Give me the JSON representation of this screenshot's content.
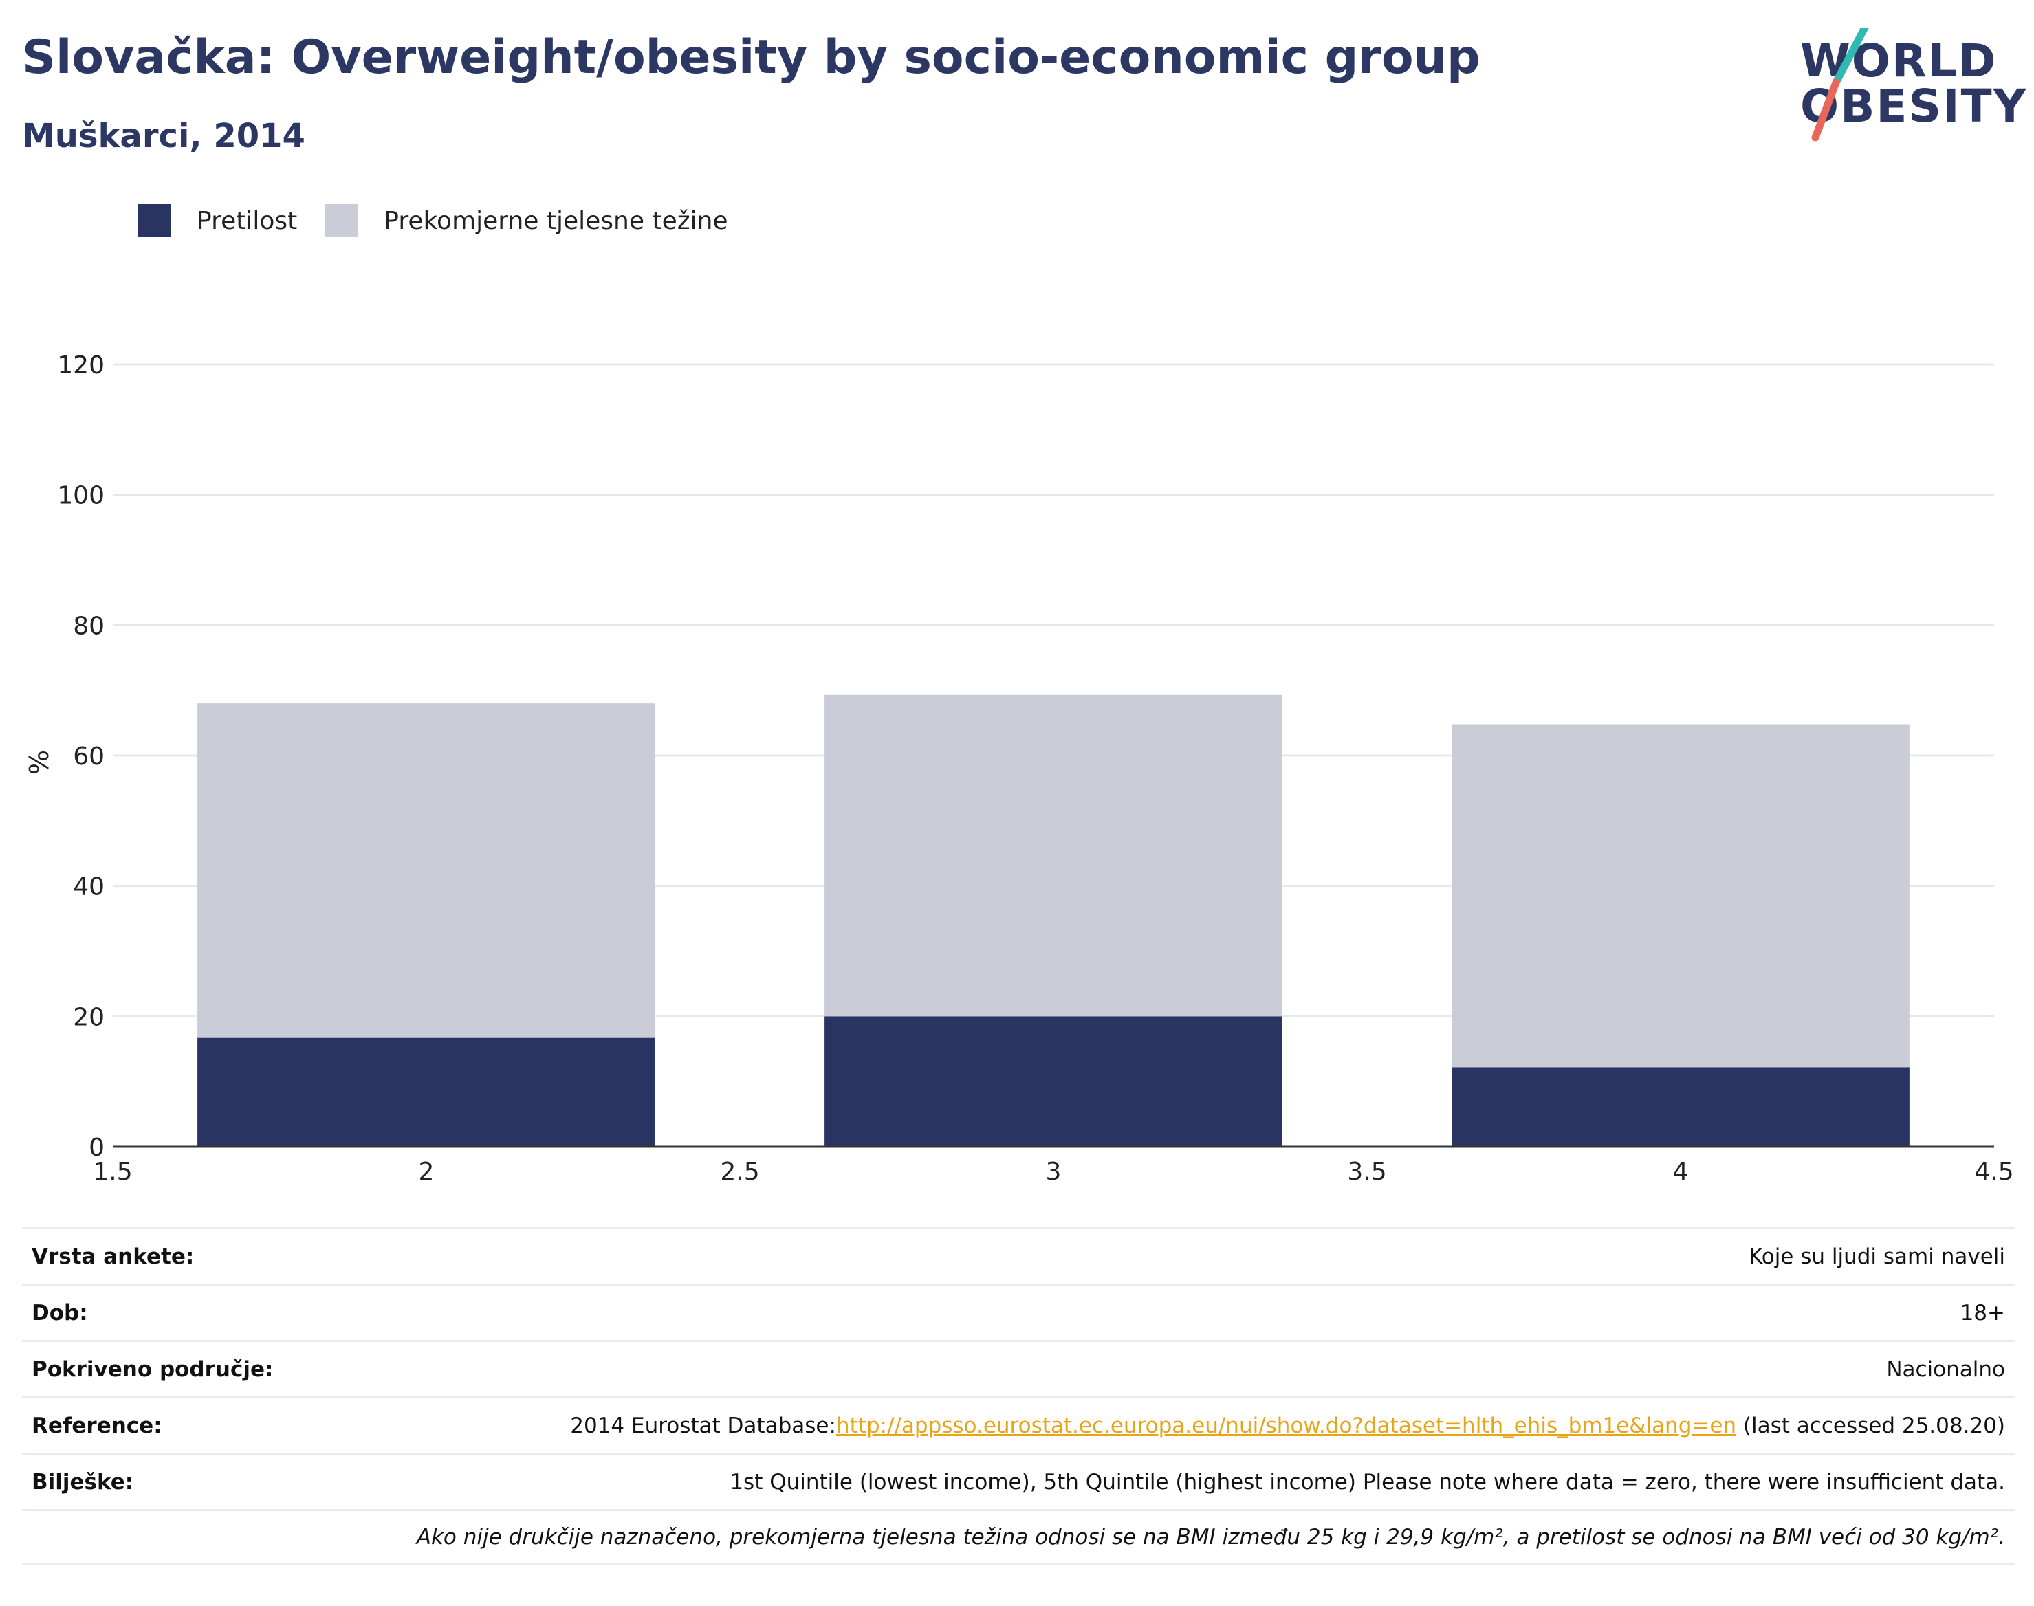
{
  "header": {
    "title": "Slovačka: Overweight/obesity by socio-economic group",
    "subtitle": "Muškarci, 2014"
  },
  "logo": {
    "line1": "WORLD",
    "line2": "OBESITY"
  },
  "colors": {
    "obesity": "#293462",
    "overweight": "#cacdd8",
    "title": "#2c3863",
    "link": "#e8a317",
    "logo_teal": "#2fb9b3",
    "logo_coral": "#e9675a"
  },
  "legend": [
    {
      "label": "Pretilost",
      "color": "#293462"
    },
    {
      "label": "Prekomjerne tjelesne težine",
      "color": "#cacdd8"
    }
  ],
  "chart_data": {
    "type": "bar",
    "stacked": true,
    "x": [
      2,
      3,
      4
    ],
    "series": [
      {
        "name": "Pretilost",
        "values": [
          16.7,
          20.0,
          12.2
        ]
      },
      {
        "name": "Prekomjerne tjelesne težine",
        "values": [
          51.3,
          49.3,
          52.6
        ]
      }
    ],
    "ylabel": "%",
    "xlabel": "",
    "ylim": [
      0,
      120
    ],
    "xlim": [
      1.5,
      4.5
    ],
    "yticks": [
      0,
      20,
      40,
      60,
      80,
      100,
      120
    ],
    "xticks": [
      "1.5",
      "2",
      "2.5",
      "3",
      "3.5",
      "4",
      "4.5"
    ],
    "grid": true,
    "legend_position": "top-left"
  },
  "info": [
    {
      "label": "Vrsta ankete:",
      "value": "Koje su ljudi sami naveli"
    },
    {
      "label": "Dob:",
      "value": "18+"
    },
    {
      "label": "Pokriveno područje:",
      "value": "Nacionalno"
    },
    {
      "label": "Reference:",
      "value_prefix": "2014 Eurostat Database:",
      "link": "http://appsso.eurostat.ec.europa.eu/nui/show.do?dataset=hlth_ehis_bm1e&lang=en",
      "value_suffix": " (last accessed 25.08.20)"
    },
    {
      "label": "Bilješke:",
      "value": "1st Quintile (lowest income), 5th Quintile (highest income) Please note where data = zero, there were insufficient data."
    }
  ],
  "footnote": "Ako nije drukčije naznačeno, prekomjerna tjelesna težina odnosi se na BMI između 25 kg i 29,9 kg/m², a pretilost se odnosi na BMI veći od 30 kg/m²."
}
